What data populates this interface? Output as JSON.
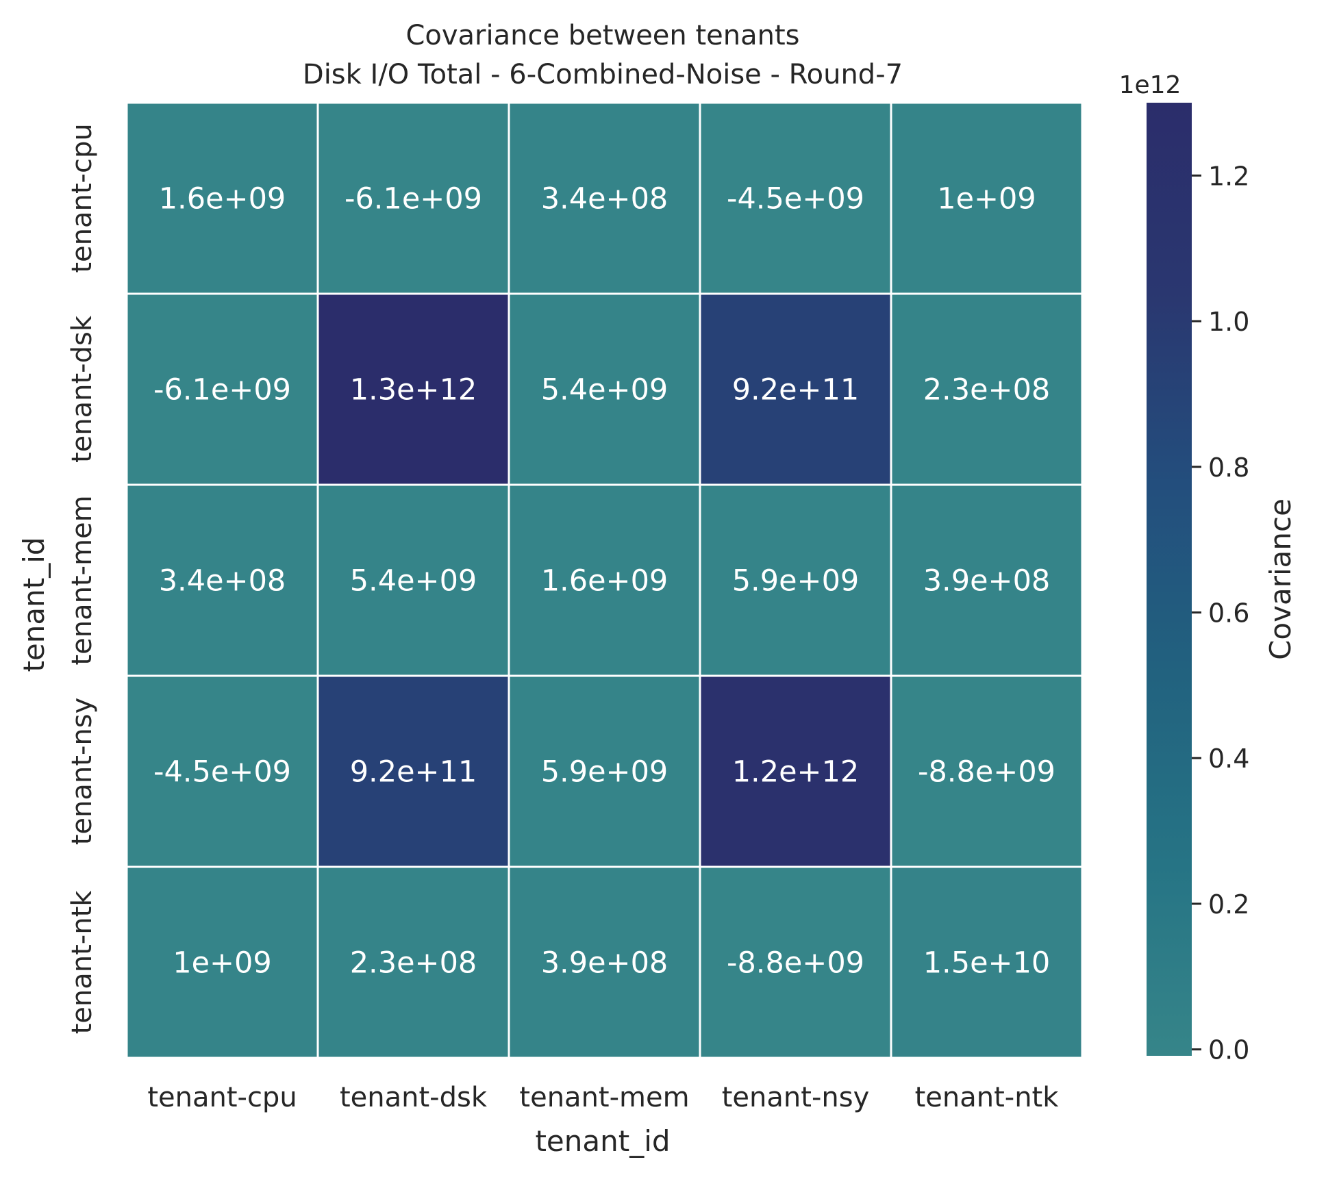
{
  "chart_data": {
    "type": "heatmap",
    "title": "Covariance between tenants",
    "subtitle": "Disk I/O Total - 6-Combined-Noise - Round-7",
    "xlabel": "tenant_id",
    "ylabel": "tenant_id",
    "x_categories": [
      "tenant-cpu",
      "tenant-dsk",
      "tenant-mem",
      "tenant-nsy",
      "tenant-ntk"
    ],
    "y_categories": [
      "tenant-cpu",
      "tenant-dsk",
      "tenant-mem",
      "tenant-nsy",
      "tenant-ntk"
    ],
    "values": [
      [
        1600000000.0,
        -6100000000.0,
        340000000.0,
        -4500000000.0,
        1000000000.0
      ],
      [
        -6100000000.0,
        1300000000000.0,
        5400000000.0,
        920000000000.0,
        230000000.0
      ],
      [
        340000000.0,
        5400000000.0,
        1600000000.0,
        5900000000.0,
        390000000.0
      ],
      [
        -4500000000.0,
        920000000000.0,
        5900000000.0,
        1200000000000.0,
        -8800000000.0
      ],
      [
        1000000000.0,
        230000000.0,
        390000000.0,
        -8800000000.0,
        15000000000.0
      ]
    ],
    "annotations": [
      [
        "1.6e+09",
        "-6.1e+09",
        "3.4e+08",
        "-4.5e+09",
        "1e+09"
      ],
      [
        "-6.1e+09",
        "1.3e+12",
        "5.4e+09",
        "9.2e+11",
        "2.3e+08"
      ],
      [
        "3.4e+08",
        "5.4e+09",
        "1.6e+09",
        "5.9e+09",
        "3.9e+08"
      ],
      [
        "-4.5e+09",
        "9.2e+11",
        "5.9e+09",
        "1.2e+12",
        "-8.8e+09"
      ],
      [
        "1e+09",
        "2.3e+08",
        "3.9e+08",
        "-8.8e+09",
        "1.5e+10"
      ]
    ],
    "colorbar": {
      "label": "Covariance",
      "offset_label": "1e12",
      "range": [
        -8800000000.0,
        1300000000000.0
      ],
      "ticks": [
        0.0,
        0.2,
        0.4,
        0.6,
        0.8,
        1.0,
        1.2
      ],
      "tick_labels": [
        "0.0",
        "0.2",
        "0.4",
        "0.6",
        "0.8",
        "1.0",
        "1.2"
      ],
      "scale": 1000000000000.0,
      "colormap": [
        "#368589",
        "#267485",
        "#22627f",
        "#234e7d",
        "#2a3770",
        "#2b2d6b"
      ]
    },
    "grid": false,
    "cell_border_color": "#ffffff",
    "text_color": "#ffffff"
  }
}
